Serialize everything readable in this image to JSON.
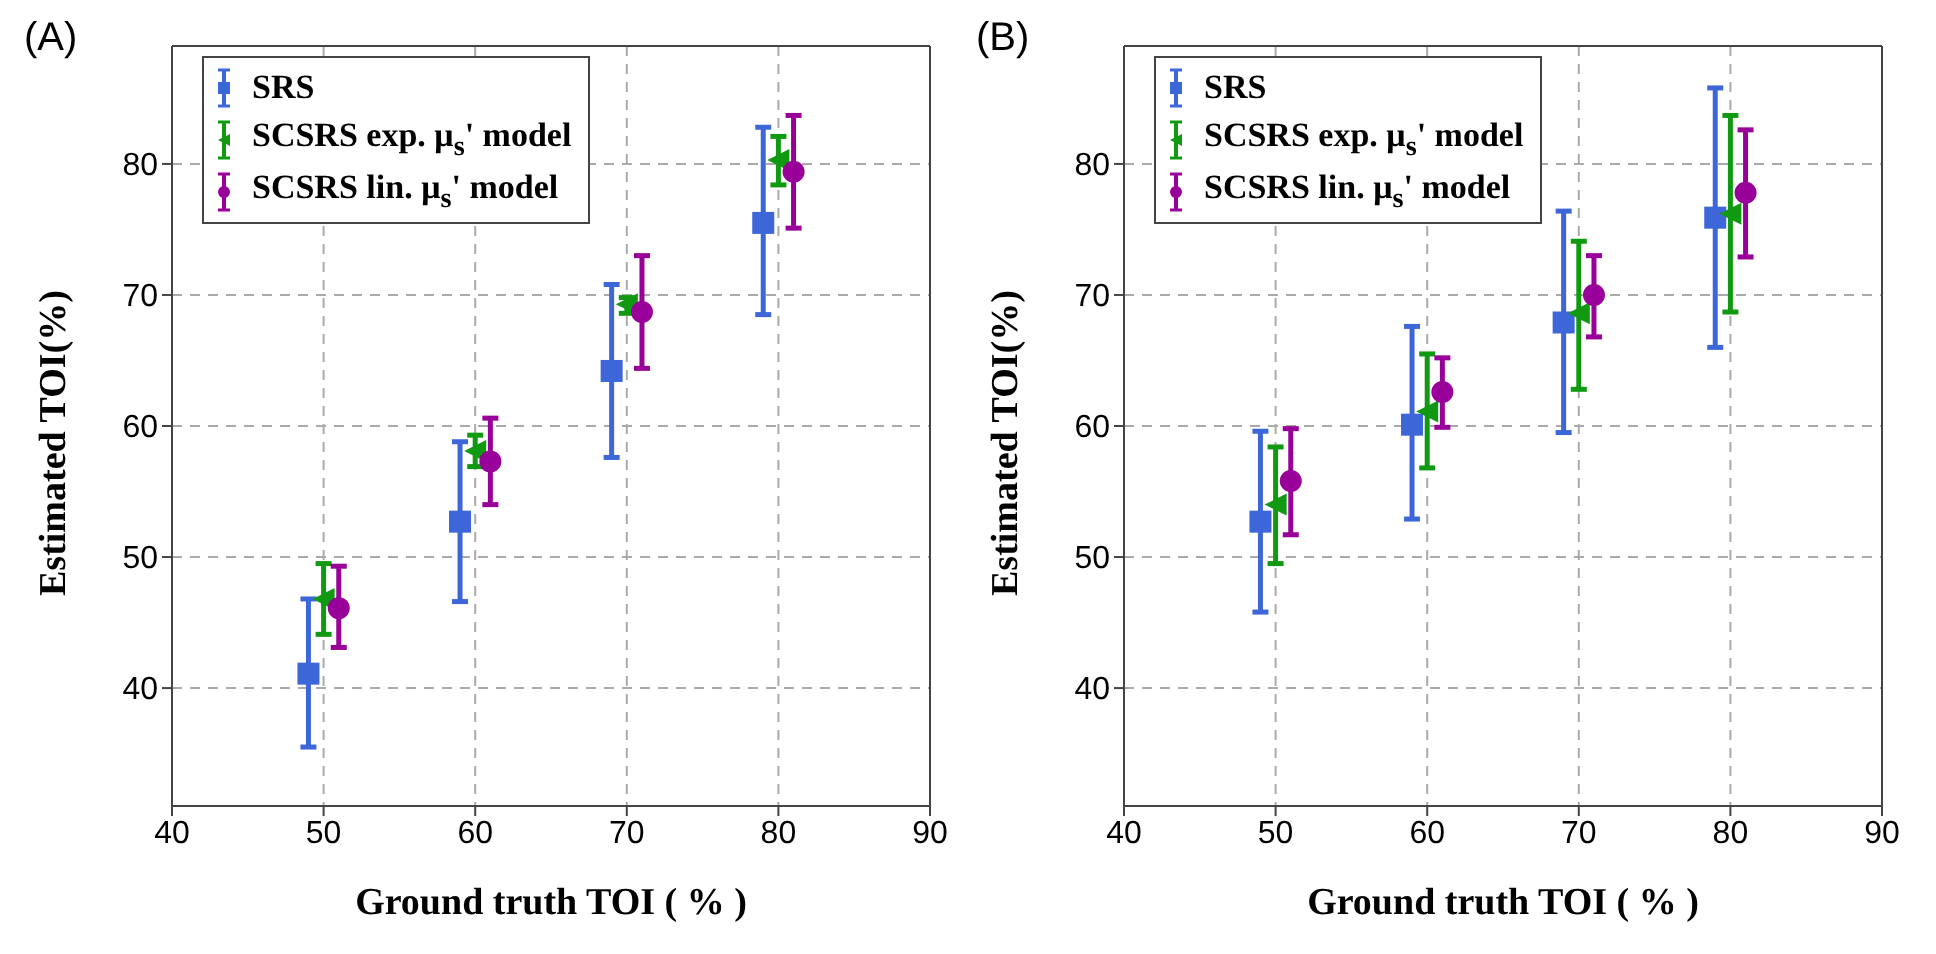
{
  "chart_data": [
    {
      "type": "scatter",
      "title": "(A)",
      "xlabel": "Ground truth TOI ( % )",
      "ylabel": "Estimated TOI(%)",
      "xlim": [
        40,
        90
      ],
      "xticks": [
        40,
        50,
        60,
        70,
        80,
        90
      ],
      "ylim": [
        31,
        89
      ],
      "yticks": [
        40,
        50,
        60,
        70,
        80
      ],
      "grid": true,
      "legend": "top left",
      "series": [
        {
          "name": "SRS",
          "color": "#3d66d8",
          "marker": "square",
          "x": [
            49,
            59,
            69,
            79
          ],
          "values": [
            41.1,
            52.7,
            64.2,
            75.5
          ],
          "errors": [
            [
              35.5,
              46.8
            ],
            [
              46.6,
              58.8
            ],
            [
              57.6,
              70.8
            ],
            [
              68.5,
              82.8
            ]
          ]
        },
        {
          "name": "SCSRS exp. μ$_{s}$' model",
          "color": "#119911",
          "marker": "triangle",
          "x": [
            50,
            60,
            70,
            80
          ],
          "values": [
            46.8,
            58.1,
            69.3,
            80.3
          ],
          "errors": [
            [
              44.1,
              49.5
            ],
            [
              56.9,
              59.3
            ],
            [
              68.6,
              69.8
            ],
            [
              78.4,
              82.1
            ]
          ]
        },
        {
          "name": "SCSRS lin. μ$_{s}$' model",
          "color": "#990099",
          "marker": "circle",
          "x": [
            51,
            61,
            71,
            81
          ],
          "values": [
            46.1,
            57.3,
            68.7,
            79.4
          ],
          "errors": [
            [
              43.1,
              49.3
            ],
            [
              54.0,
              60.6
            ],
            [
              64.4,
              73.0
            ],
            [
              75.1,
              83.7
            ]
          ]
        }
      ]
    },
    {
      "type": "scatter",
      "title": "(B)",
      "xlabel": "Ground truth TOI ( % )",
      "ylabel": "Estimated TOI(%)",
      "xlim": [
        40,
        90
      ],
      "xticks": [
        40,
        50,
        60,
        70,
        80,
        90
      ],
      "ylim": [
        31,
        89
      ],
      "yticks": [
        40,
        50,
        60,
        70,
        80
      ],
      "grid": true,
      "legend": "top left",
      "series": [
        {
          "name": "SRS",
          "color": "#3d66d8",
          "marker": "square",
          "x": [
            49,
            59,
            69,
            79
          ],
          "values": [
            52.7,
            60.1,
            67.9,
            75.9
          ],
          "errors": [
            [
              45.8,
              59.6
            ],
            [
              52.9,
              67.6
            ],
            [
              59.5,
              76.4
            ],
            [
              66.0,
              85.8
            ]
          ]
        },
        {
          "name": "SCSRS exp. μ$_{s}$' model",
          "color": "#119911",
          "marker": "triangle",
          "x": [
            50,
            60,
            70,
            80
          ],
          "values": [
            54.0,
            61.1,
            68.6,
            76.2
          ],
          "errors": [
            [
              49.5,
              58.4
            ],
            [
              56.8,
              65.5
            ],
            [
              62.8,
              74.1
            ],
            [
              68.7,
              83.7
            ]
          ]
        },
        {
          "name": "SCSRS lin. μ$_{s}$' model",
          "color": "#990099",
          "marker": "circle",
          "x": [
            51,
            61,
            71,
            81
          ],
          "values": [
            55.8,
            62.6,
            70.0,
            77.8
          ],
          "errors": [
            [
              51.7,
              59.8
            ],
            [
              59.9,
              65.2
            ],
            [
              66.8,
              73.0
            ],
            [
              72.9,
              82.6
            ]
          ]
        }
      ]
    }
  ]
}
